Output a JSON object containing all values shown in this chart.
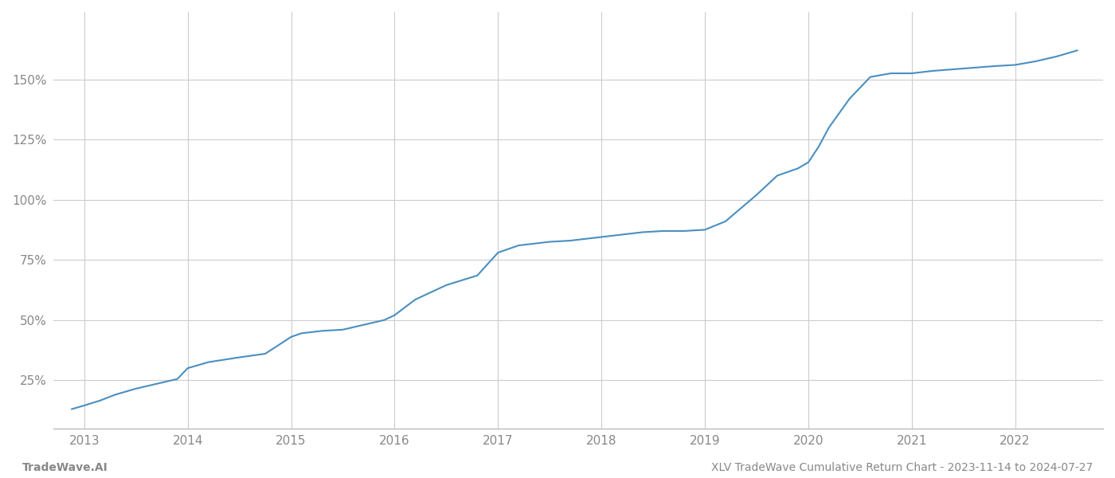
{
  "title": "XLV TradeWave Cumulative Return Chart - 2023-11-14 to 2024-07-27",
  "left_label": "TradeWave.AI",
  "line_color": "#4a8fc0",
  "background_color": "#ffffff",
  "grid_color": "#cccccc",
  "x_years": [
    2013,
    2014,
    2015,
    2016,
    2017,
    2018,
    2019,
    2020,
    2021,
    2022
  ],
  "x_data": [
    2012.88,
    2013.0,
    2013.15,
    2013.3,
    2013.5,
    2013.7,
    2013.9,
    2014.0,
    2014.2,
    2014.5,
    2014.75,
    2015.0,
    2015.1,
    2015.3,
    2015.5,
    2015.7,
    2015.9,
    2016.0,
    2016.2,
    2016.5,
    2016.8,
    2017.0,
    2017.2,
    2017.5,
    2017.7,
    2018.0,
    2018.2,
    2018.4,
    2018.6,
    2018.8,
    2019.0,
    2019.2,
    2019.5,
    2019.7,
    2019.9,
    2020.0,
    2020.1,
    2020.2,
    2020.4,
    2020.6,
    2020.8,
    2021.0,
    2021.2,
    2021.5,
    2021.8,
    2022.0,
    2022.2,
    2022.4,
    2022.6
  ],
  "y_data": [
    0.13,
    0.145,
    0.165,
    0.19,
    0.215,
    0.235,
    0.255,
    0.3,
    0.325,
    0.345,
    0.36,
    0.43,
    0.445,
    0.455,
    0.46,
    0.48,
    0.5,
    0.52,
    0.585,
    0.645,
    0.685,
    0.78,
    0.81,
    0.825,
    0.83,
    0.845,
    0.855,
    0.865,
    0.87,
    0.87,
    0.875,
    0.91,
    1.02,
    1.1,
    1.13,
    1.155,
    1.22,
    1.3,
    1.42,
    1.51,
    1.525,
    1.525,
    1.535,
    1.545,
    1.555,
    1.56,
    1.575,
    1.595,
    1.62
  ],
  "yticks": [
    0.25,
    0.5,
    0.75,
    1.0,
    1.25,
    1.5
  ],
  "ytick_labels": [
    "25%",
    "50%",
    "75%",
    "100%",
    "125%",
    "150%"
  ],
  "ylim": [
    0.05,
    1.78
  ],
  "xlim": [
    2012.7,
    2022.85
  ],
  "line_width": 1.5,
  "footer_fontsize": 10,
  "tick_fontsize": 11,
  "tick_color": "#888888",
  "spine_color": "#bbbbbb"
}
